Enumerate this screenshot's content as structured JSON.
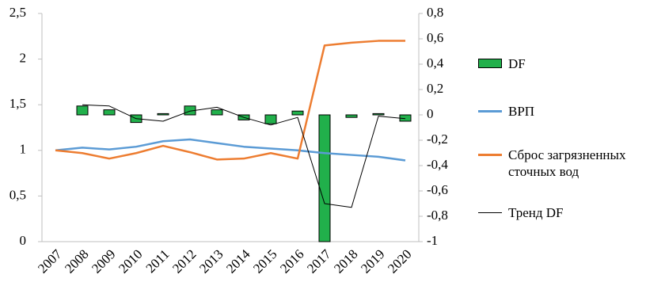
{
  "chart_data": {
    "type": "combo",
    "categories": [
      "2007",
      "2008",
      "2009",
      "2010",
      "2011",
      "2012",
      "2013",
      "2014",
      "2015",
      "2016",
      "2017",
      "2018",
      "2019",
      "2020"
    ],
    "ylim": [
      0,
      2.5
    ],
    "yticks": [
      0,
      {
        "value": 0.5,
        "label": "0,5"
      },
      1,
      {
        "value": 1.5,
        "label": "1,5"
      },
      2,
      {
        "value": 2.5,
        "label": "2,5"
      }
    ],
    "y2lim": [
      -1,
      0.8
    ],
    "y2ticks": [
      -1,
      {
        "value": -0.8,
        "label": "-0,8"
      },
      {
        "value": -0.6,
        "label": "-0,6"
      },
      {
        "value": -0.4,
        "label": "-0,4"
      },
      {
        "value": -0.2,
        "label": "-0,2"
      },
      0,
      {
        "value": 0.2,
        "label": "0,2"
      },
      {
        "value": 0.4,
        "label": "0,4"
      },
      {
        "value": 0.6,
        "label": "0,6"
      },
      {
        "value": 0.8,
        "label": "0,8"
      }
    ],
    "legend": "right",
    "series": [
      {
        "name": "DF",
        "type": "bar",
        "axis": "y2",
        "color": "#21b04b",
        "values": [
          null,
          0.07,
          0.04,
          -0.06,
          0.01,
          0.07,
          0.04,
          -0.04,
          -0.07,
          0.03,
          -1,
          -0.02,
          0.01,
          -0.05
        ]
      },
      {
        "name": "ВРП",
        "type": "line",
        "color": "#5b9bd5",
        "values": [
          1.0,
          1.03,
          1.01,
          1.04,
          1.1,
          1.12,
          1.08,
          1.04,
          1.02,
          1.0,
          0.97,
          0.95,
          0.93,
          0.89
        ]
      },
      {
        "name": "Сброс загрязненных сточных вод",
        "type": "line",
        "color": "#ed7d31",
        "values": [
          1.0,
          0.97,
          0.91,
          0.97,
          1.05,
          0.98,
          0.9,
          0.91,
          0.97,
          0.91,
          2.15,
          2.18,
          2.2,
          2.2
        ]
      },
      {
        "name": "Тренд DF",
        "type": "line",
        "axis": "y2",
        "color": "#000000",
        "values": [
          null,
          0.08,
          0.07,
          -0.03,
          -0.05,
          0.03,
          0.06,
          -0.02,
          -0.08,
          -0.02,
          -0.7,
          -0.73,
          -0.01,
          -0.03
        ]
      }
    ]
  }
}
